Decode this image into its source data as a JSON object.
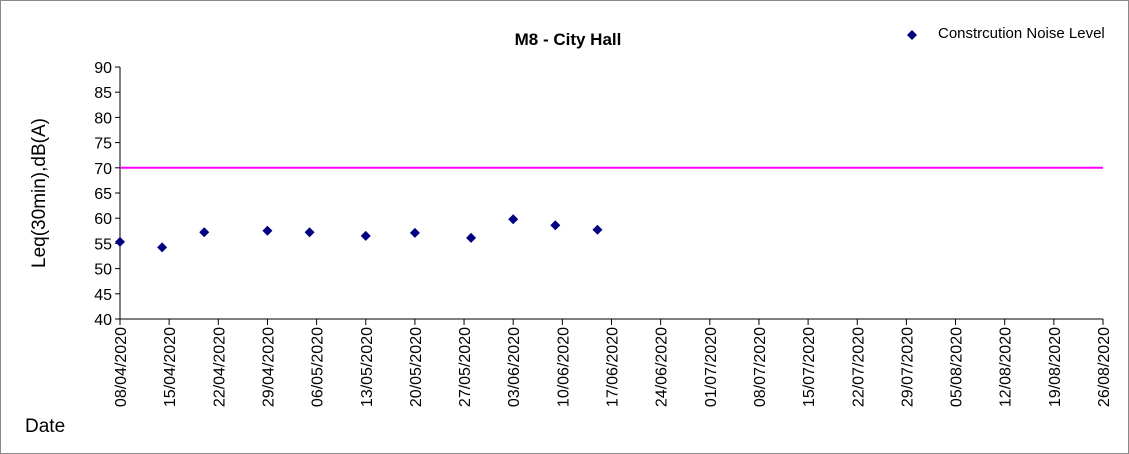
{
  "chart_data": {
    "type": "scatter",
    "title": "M8 - City Hall",
    "x_label": "Date",
    "y_label": "Leq(30min),dB(A)",
    "series": [
      {
        "name": "Constrcution Noise Level",
        "color": "#000080",
        "x": [
          "2020-04-08",
          "2020-04-14",
          "2020-04-20",
          "2020-04-29",
          "2020-05-05",
          "2020-05-13",
          "2020-05-20",
          "2020-05-28",
          "2020-06-03",
          "2020-06-09",
          "2020-06-15"
        ],
        "values": [
          55.3,
          54.2,
          57.2,
          57.5,
          57.2,
          56.5,
          57.1,
          56.1,
          59.8,
          58.6,
          57.7
        ]
      }
    ],
    "limit_line": {
      "value": 70,
      "color": "#ff00ff"
    },
    "xlim": [
      "2020-04-08",
      "2020-08-26"
    ],
    "xticks": [
      {
        "value": "2020-04-08",
        "label": "08/04/2020"
      },
      {
        "value": "2020-04-15",
        "label": "15/04/2020"
      },
      {
        "value": "2020-04-22",
        "label": "22/04/2020"
      },
      {
        "value": "2020-04-29",
        "label": "29/04/2020"
      },
      {
        "value": "2020-05-06",
        "label": "06/05/2020"
      },
      {
        "value": "2020-05-13",
        "label": "13/05/2020"
      },
      {
        "value": "2020-05-20",
        "label": "20/05/2020"
      },
      {
        "value": "2020-05-27",
        "label": "27/05/2020"
      },
      {
        "value": "2020-06-03",
        "label": "03/06/2020"
      },
      {
        "value": "2020-06-10",
        "label": "10/06/2020"
      },
      {
        "value": "2020-06-17",
        "label": "17/06/2020"
      },
      {
        "value": "2020-06-24",
        "label": "24/06/2020"
      },
      {
        "value": "2020-07-01",
        "label": "01/07/2020"
      },
      {
        "value": "2020-07-08",
        "label": "08/07/2020"
      },
      {
        "value": "2020-07-15",
        "label": "15/07/2020"
      },
      {
        "value": "2020-07-22",
        "label": "22/07/2020"
      },
      {
        "value": "2020-07-29",
        "label": "29/07/2020"
      },
      {
        "value": "2020-08-05",
        "label": "05/08/2020"
      },
      {
        "value": "2020-08-12",
        "label": "12/08/2020"
      },
      {
        "value": "2020-08-19",
        "label": "19/08/2020"
      },
      {
        "value": "2020-08-26",
        "label": "26/08/2020"
      }
    ],
    "ylim": [
      40,
      90
    ],
    "yticks": [
      40,
      45,
      50,
      55,
      60,
      65,
      70,
      75,
      80,
      85,
      90
    ]
  }
}
